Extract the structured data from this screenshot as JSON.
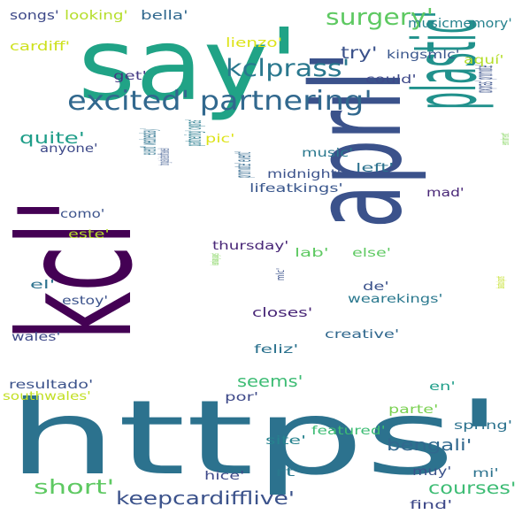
{
  "words": [
    {
      "id": "kcl",
      "text": "kcl'",
      "color": "#440154",
      "vertical": true
    },
    {
      "id": "april",
      "text": "april'",
      "color": "#3b528b",
      "vertical": true
    },
    {
      "id": "https",
      "text": "https'",
      "color": "#2c728e",
      "vertical": false
    },
    {
      "id": "say",
      "text": "say'",
      "color": "#20a386",
      "vertical": false
    },
    {
      "id": "plastic",
      "text": "plastic'",
      "color": "#21918c",
      "vertical": true
    },
    {
      "id": "excited-partnering",
      "text": "excited' partnering'",
      "color": "#31688e",
      "vertical": false
    },
    {
      "id": "kclprass",
      "text": "kclprass'",
      "color": "#2a788e",
      "vertical": false
    },
    {
      "id": "surgery",
      "text": "surgery'",
      "color": "#5ec962",
      "vertical": false
    },
    {
      "id": "oxpras-promote",
      "text": "oxpras' promote'",
      "color": "#3b528b",
      "vertical": true
    },
    {
      "id": "event-wednesday",
      "text": "event' wednesday'",
      "color": "#2c728e",
      "vertical": true
    },
    {
      "id": "partnering-oxpras",
      "text": "partnering' oxpras'",
      "color": "#287c8e",
      "vertical": true
    },
    {
      "id": "promote-event",
      "text": "promote' event'",
      "color": "#31688e",
      "vertical": true
    },
    {
      "id": "tonguetwister",
      "text": "tonguetwisteroftheweek'",
      "color": "#39568c",
      "vertical": true
    },
    {
      "id": "short",
      "text": "short'",
      "color": "#5ec962",
      "vertical": false
    },
    {
      "id": "keepcardifflive",
      "text": "keepcardifflive'",
      "color": "#3b528b",
      "vertical": false
    },
    {
      "id": "courses",
      "text": "courses'",
      "color": "#3dbc74",
      "vertical": false
    },
    {
      "id": "bengali",
      "text": "bengali'",
      "color": "#31688e",
      "vertical": false
    },
    {
      "id": "seems",
      "text": "seems'",
      "color": "#3dbc74",
      "vertical": false
    },
    {
      "id": "quite",
      "text": "quite'",
      "color": "#1f9e89",
      "vertical": false
    },
    {
      "id": "try",
      "text": "try'",
      "color": "#3b528b",
      "vertical": false
    },
    {
      "id": "songs",
      "text": "songs'",
      "color": "#3e4989",
      "vertical": false
    },
    {
      "id": "looking",
      "text": "looking'",
      "color": "#b5de2b",
      "vertical": false
    },
    {
      "id": "bella",
      "text": "bella'",
      "color": "#31688e",
      "vertical": false
    },
    {
      "id": "cardiff",
      "text": "cardiff'",
      "color": "#cde11d",
      "vertical": false
    },
    {
      "id": "musicmemory",
      "text": "musicmemory'",
      "color": "#26828e",
      "vertical": false
    },
    {
      "id": "lienzo",
      "text": "lienzo'",
      "color": "#dde318",
      "vertical": false
    },
    {
      "id": "kingsmlc",
      "text": "kingsmlc'",
      "color": "#39568c",
      "vertical": false
    },
    {
      "id": "aqui",
      "text": "aquí'",
      "color": "#b5de2b",
      "vertical": false
    },
    {
      "id": "get",
      "text": "get'",
      "color": "#443983",
      "vertical": false
    },
    {
      "id": "could",
      "text": "could'",
      "color": "#3e4989",
      "vertical": false
    },
    {
      "id": "anyone",
      "text": "anyone'",
      "color": "#3e4989",
      "vertical": false
    },
    {
      "id": "pic",
      "text": "pic'",
      "color": "#dde318",
      "vertical": false
    },
    {
      "id": "music",
      "text": "music'",
      "color": "#2a788e",
      "vertical": false
    },
    {
      "id": "left",
      "text": "left'",
      "color": "#2c728e",
      "vertical": false
    },
    {
      "id": "midnight",
      "text": "midnight'",
      "color": "#3b528b",
      "vertical": false
    },
    {
      "id": "lifeatkings",
      "text": "lifeatkings'",
      "color": "#39568c",
      "vertical": false
    },
    {
      "id": "mad",
      "text": "mad'",
      "color": "#482677",
      "vertical": false
    },
    {
      "id": "enrolment",
      "text": "enrolment'",
      "color": "#7ad151",
      "vertical": true
    },
    {
      "id": "como",
      "text": "como'",
      "color": "#3b528b",
      "vertical": false
    },
    {
      "id": "este",
      "text": "este'",
      "color": "#b5de2b",
      "vertical": false
    },
    {
      "id": "thursday",
      "text": "thursday'",
      "color": "#482677",
      "vertical": false
    },
    {
      "id": "lab",
      "text": "lab'",
      "color": "#5ec962",
      "vertical": false
    },
    {
      "id": "else",
      "text": "else'",
      "color": "#5ec962",
      "vertical": false
    },
    {
      "id": "el",
      "text": "el'",
      "color": "#2c728e",
      "vertical": false
    },
    {
      "id": "de",
      "text": "de'",
      "color": "#3b528b",
      "vertical": false
    },
    {
      "id": "estoy",
      "text": "estoy'",
      "color": "#3b528b",
      "vertical": false
    },
    {
      "id": "learnlanguages",
      "text": "learnlanguages'",
      "color": "#7ad151",
      "vertical": true
    },
    {
      "id": "mlc",
      "text": "mlc'",
      "color": "#3b528b",
      "vertical": true
    },
    {
      "id": "wearekings",
      "text": "wearekings'",
      "color": "#2a788e",
      "vertical": false
    },
    {
      "id": "closes",
      "text": "closes'",
      "color": "#482677",
      "vertical": false
    },
    {
      "id": "wales",
      "text": "wales'",
      "color": "#3e4989",
      "vertical": false
    },
    {
      "id": "creative",
      "text": "creative'",
      "color": "#31688e",
      "vertical": false
    },
    {
      "id": "baratoolsports",
      "text": "baratoolsports'",
      "color": "#c2df23",
      "vertical": true
    },
    {
      "id": "feliz",
      "text": "feliz'",
      "color": "#2c728e",
      "vertical": false
    },
    {
      "id": "resultado",
      "text": "resultado'",
      "color": "#3b528b",
      "vertical": false
    },
    {
      "id": "southwales",
      "text": "southwales'",
      "color": "#c2df23",
      "vertical": false
    },
    {
      "id": "por",
      "text": "por'",
      "color": "#3e4989",
      "vertical": false
    },
    {
      "id": "en",
      "text": "en'",
      "color": "#1f9e89",
      "vertical": false
    },
    {
      "id": "parte",
      "text": "parte'",
      "color": "#7ad151",
      "vertical": false
    },
    {
      "id": "spring",
      "text": "spring'",
      "color": "#2c728e",
      "vertical": false
    },
    {
      "id": "featured",
      "text": "featured'",
      "color": "#3dbc74",
      "vertical": false
    },
    {
      "id": "site",
      "text": "site'",
      "color": "#26828e",
      "vertical": false
    },
    {
      "id": "hice",
      "text": "hice'",
      "color": "#3e4989",
      "vertical": false
    },
    {
      "id": "rt",
      "text": "rt'",
      "color": "#2a788e",
      "vertical": false
    },
    {
      "id": "muy",
      "text": "muy'",
      "color": "#3b528b",
      "vertical": false
    },
    {
      "id": "mi",
      "text": "mi'",
      "color": "#2c728e",
      "vertical": false
    },
    {
      "id": "find",
      "text": "find'",
      "color": "#3e4989",
      "vertical": false
    }
  ]
}
